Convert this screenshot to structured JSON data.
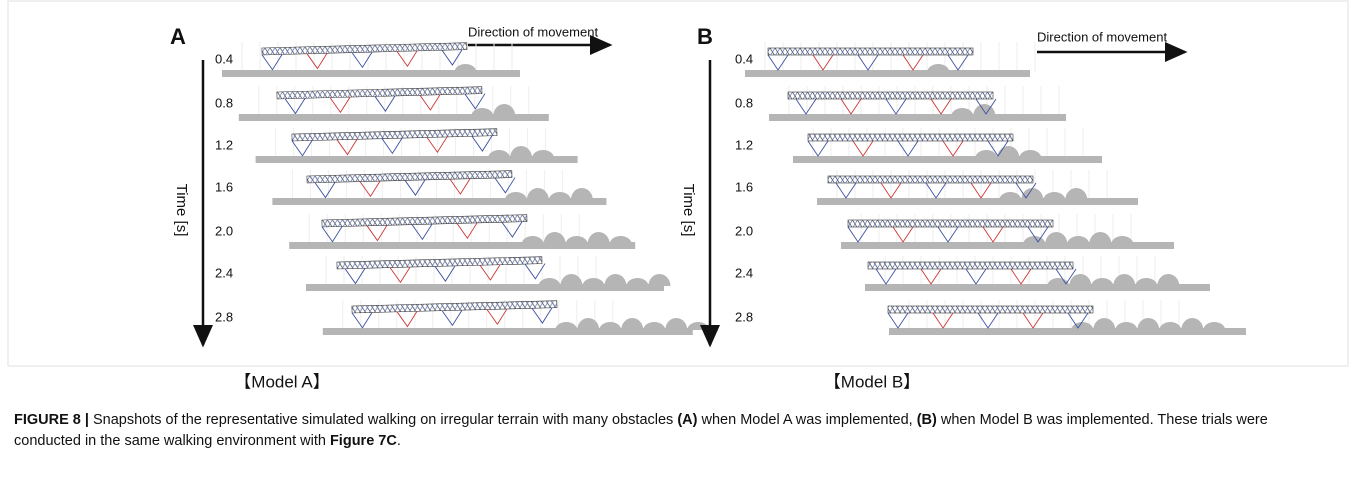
{
  "figure": {
    "panels": [
      {
        "label": "A",
        "direction": "Direction of movement",
        "axis_label": "Time [s]",
        "times": [
          "0.4",
          "0.8",
          "1.2",
          "1.6",
          "2.0",
          "2.4",
          "2.8"
        ],
        "model": "【Model A】"
      },
      {
        "label": "B",
        "direction": "Direction of movement",
        "axis_label": "Time [s]",
        "times": [
          "0.4",
          "0.8",
          "1.2",
          "1.6",
          "2.0",
          "2.4",
          "2.8"
        ],
        "model": "【Model B】"
      }
    ],
    "caption": [
      {
        "text": "FIGURE 8 |",
        "bold": true
      },
      {
        "text": " Snapshots of the representative simulated walking on irregular terrain with many obstacles ",
        "bold": false
      },
      {
        "text": "(A)",
        "bold": true
      },
      {
        "text": " when Model A was implemented, ",
        "bold": false
      },
      {
        "text": "(B)",
        "bold": true
      },
      {
        "text": " when Model B was implemented. These trials were conducted in the same walking environment with ",
        "bold": false
      },
      {
        "text": "Figure 7C",
        "bold": true
      },
      {
        "text": ".",
        "bold": false
      }
    ]
  }
}
